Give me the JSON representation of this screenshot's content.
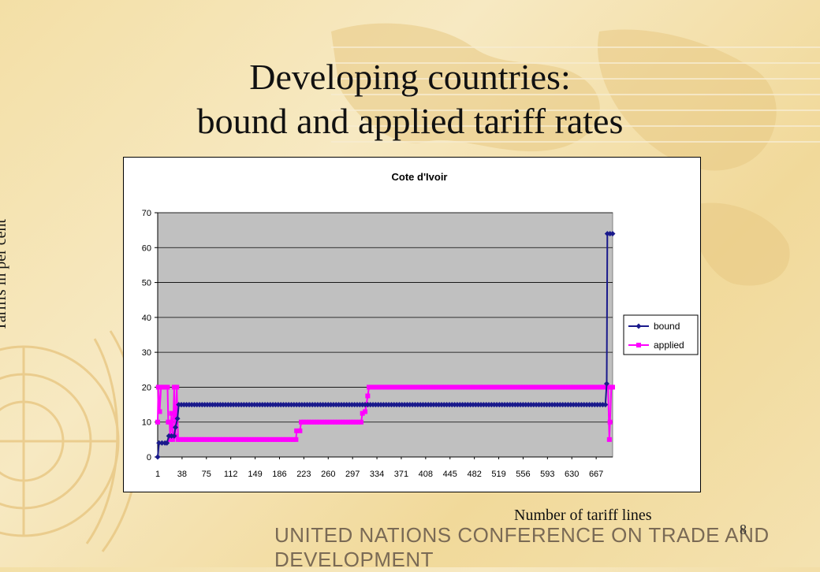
{
  "slide": {
    "title_line1": "Developing countries:",
    "title_line2": "bound and applied tariff rates",
    "y_caption": "Tariffs in per cent",
    "x_caption": "Number of tariff lines",
    "footer": "UNITED NATIONS CONFERENCE ON TRADE AND DEVELOPMENT",
    "page_number": "8"
  },
  "colors": {
    "bound": "#1a1a8c",
    "applied": "#ff00ff",
    "plot_bg": "#c0c0c0"
  },
  "chart_data": {
    "type": "line",
    "title": "Cote d'Ivoir",
    "ylim": [
      0,
      70
    ],
    "yticks": [
      "0",
      "10",
      "20",
      "30",
      "40",
      "50",
      "60",
      "70"
    ],
    "xlim": [
      1,
      692
    ],
    "xticks": [
      "1",
      "38",
      "75",
      "112",
      "149",
      "186",
      "223",
      "260",
      "297",
      "334",
      "371",
      "408",
      "445",
      "482",
      "519",
      "556",
      "593",
      "630",
      "667"
    ],
    "grid": true,
    "legend_position": "right",
    "series": [
      {
        "name": "bound",
        "marker": "diamond",
        "points": [
          [
            1,
            0
          ],
          [
            3,
            4
          ],
          [
            12,
            4
          ],
          [
            15,
            4
          ],
          [
            18,
            6
          ],
          [
            26,
            6
          ],
          [
            28,
            8.5
          ],
          [
            31,
            11
          ],
          [
            33,
            15
          ],
          [
            100,
            15
          ],
          [
            200,
            15
          ],
          [
            300,
            15
          ],
          [
            400,
            15
          ],
          [
            500,
            15
          ],
          [
            600,
            15
          ],
          [
            681,
            15
          ],
          [
            683,
            21
          ],
          [
            684,
            64
          ],
          [
            692,
            64
          ]
        ]
      },
      {
        "name": "applied",
        "marker": "square",
        "points": [
          [
            1,
            10
          ],
          [
            2,
            20
          ],
          [
            4,
            13
          ],
          [
            6,
            20
          ],
          [
            16,
            20
          ],
          [
            17,
            10
          ],
          [
            19,
            10
          ],
          [
            20,
            5
          ],
          [
            22,
            12.5
          ],
          [
            24,
            5
          ],
          [
            26,
            20
          ],
          [
            28,
            6
          ],
          [
            30,
            20
          ],
          [
            32,
            5
          ],
          [
            100,
            5
          ],
          [
            211,
            5
          ],
          [
            212,
            7.5
          ],
          [
            217,
            7.5
          ],
          [
            219,
            10
          ],
          [
            310,
            10
          ],
          [
            312,
            12.5
          ],
          [
            316,
            13
          ],
          [
            318,
            15
          ],
          [
            320,
            17.5
          ],
          [
            322,
            20
          ],
          [
            400,
            20
          ],
          [
            500,
            20
          ],
          [
            600,
            20
          ],
          [
            685,
            20
          ],
          [
            687,
            5
          ],
          [
            688,
            10
          ],
          [
            690,
            20
          ],
          [
            692,
            20
          ]
        ]
      }
    ]
  }
}
